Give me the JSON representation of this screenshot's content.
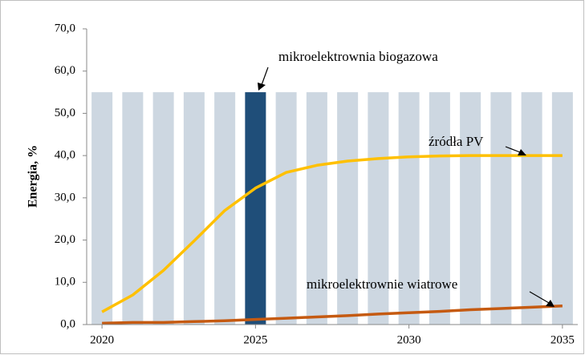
{
  "chart_data": {
    "type": "bar-line",
    "y_label": "Energia, %",
    "x": [
      2020,
      2021,
      2022,
      2023,
      2024,
      2025,
      2026,
      2027,
      2028,
      2029,
      2030,
      2031,
      2032,
      2033,
      2034,
      2035
    ],
    "xlim": [
      2019.5,
      2035.5
    ],
    "xticks": [
      2020,
      2025,
      2030,
      2035
    ],
    "ylim": [
      0,
      70
    ],
    "yticks": [
      {
        "value": 0,
        "label": "0,0"
      },
      {
        "value": 10,
        "label": "10,0"
      },
      {
        "value": 20,
        "label": "20,0"
      },
      {
        "value": 30,
        "label": "30,0"
      },
      {
        "value": 40,
        "label": "40,0"
      },
      {
        "value": 50,
        "label": "50,0"
      },
      {
        "value": 60,
        "label": "60,0"
      },
      {
        "value": 70,
        "label": "70,0"
      }
    ],
    "grid": false,
    "series": [
      {
        "name": "mikroelektrownia biogazowa",
        "kind": "bar",
        "colors": [
          "#cdd7e1",
          "#cdd7e1",
          "#cdd7e1",
          "#cdd7e1",
          "#cdd7e1",
          "#1f4e79",
          "#cdd7e1",
          "#cdd7e1",
          "#cdd7e1",
          "#cdd7e1",
          "#cdd7e1",
          "#cdd7e1",
          "#cdd7e1",
          "#cdd7e1",
          "#cdd7e1",
          "#cdd7e1"
        ],
        "values": [
          55,
          55,
          55,
          55,
          55,
          55,
          55,
          55,
          55,
          55,
          55,
          55,
          55,
          55,
          55,
          55
        ]
      },
      {
        "name": "źródła PV",
        "kind": "line",
        "color": "#ffc000",
        "values": [
          3.0,
          7.0,
          12.8,
          19.8,
          27.0,
          32.3,
          36.0,
          37.7,
          38.7,
          39.3,
          39.7,
          39.9,
          40.0,
          40.0,
          40.0,
          40.0
        ]
      },
      {
        "name": "mikroelektrownie wiatrowe",
        "kind": "line",
        "color": "#c55a11",
        "values": [
          0.3,
          0.5,
          0.5,
          0.7,
          0.9,
          1.2,
          1.5,
          1.8,
          2.1,
          2.5,
          2.8,
          3.1,
          3.5,
          3.8,
          4.1,
          4.4
        ]
      }
    ]
  }
}
